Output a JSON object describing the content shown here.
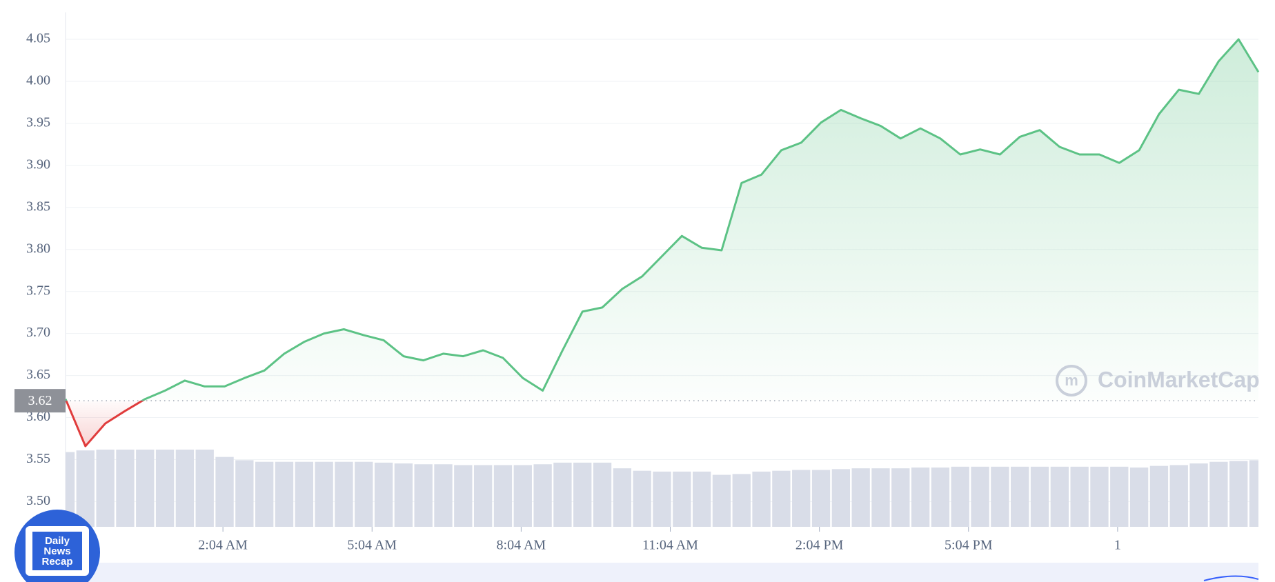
{
  "chart_data": {
    "type": "line",
    "x": [
      -1.1,
      -0.7,
      -0.3,
      0.1,
      0.5,
      0.9,
      1.3,
      1.7,
      2.1,
      2.5,
      2.9,
      3.3,
      3.7,
      4.1,
      4.5,
      4.9,
      5.3,
      5.7,
      6.1,
      6.5,
      6.9,
      7.3,
      7.7,
      8.1,
      8.5,
      8.9,
      9.3,
      9.7,
      10.1,
      10.5,
      10.9,
      11.3,
      11.7,
      12.1,
      12.5,
      12.9,
      13.3,
      13.7,
      14.1,
      14.5,
      14.9,
      15.3,
      15.7,
      16.1,
      16.5,
      16.9,
      17.3,
      17.7,
      18.1,
      18.5,
      18.9,
      19.3,
      19.7,
      20.1,
      20.5,
      20.9,
      21.3,
      21.7,
      22.1,
      22.5,
      22.9
    ],
    "values": [
      3.622,
      3.566,
      3.593,
      3.608,
      3.622,
      3.632,
      3.644,
      3.637,
      3.637,
      3.647,
      3.656,
      3.676,
      3.69,
      3.7,
      3.705,
      3.698,
      3.692,
      3.673,
      3.668,
      3.676,
      3.673,
      3.68,
      3.671,
      3.647,
      3.632,
      3.68,
      3.726,
      3.731,
      3.753,
      3.768,
      3.792,
      3.816,
      3.802,
      3.799,
      3.879,
      3.889,
      3.918,
      3.927,
      3.951,
      3.966,
      3.956,
      3.947,
      3.932,
      3.944,
      3.932,
      3.913,
      3.919,
      3.913,
      3.934,
      3.942,
      3.922,
      3.913,
      3.913,
      3.903,
      3.918,
      3.961,
      3.99,
      3.985,
      4.024,
      4.05,
      4.011
    ],
    "up_color": "#5cc285",
    "down_color": "#e03c3c",
    "baseline": 3.62,
    "volume": {
      "axis": "y2",
      "color": "#d9dde8",
      "values": [
        92,
        94,
        95,
        95,
        95,
        95,
        95,
        95,
        86,
        82,
        80,
        80,
        80,
        80,
        80,
        80,
        79,
        78,
        77,
        77,
        76,
        76,
        76,
        76,
        77,
        79,
        79,
        79,
        72,
        69,
        68,
        68,
        68,
        64,
        65,
        68,
        69,
        70,
        70,
        71,
        72,
        72,
        72,
        73,
        73,
        74,
        74,
        74,
        74,
        74,
        74,
        74,
        74,
        74,
        73,
        75,
        76,
        78,
        80,
        81,
        82
      ]
    },
    "xlim": [
      -1.1,
      22.9
    ],
    "xticks": [
      {
        "value": 2.0667,
        "label": "2:04 AM"
      },
      {
        "value": 5.0667,
        "label": "5:04 AM"
      },
      {
        "value": 8.0667,
        "label": "8:04 AM"
      },
      {
        "value": 11.0667,
        "label": "11:04 AM"
      },
      {
        "value": 14.0667,
        "label": "2:04 PM"
      },
      {
        "value": 17.0667,
        "label": "5:04 PM"
      },
      {
        "value": 20.0667,
        "label": "1"
      }
    ],
    "ylim": [
      3.47,
      4.082
    ],
    "yticks": [
      {
        "value": 3.5,
        "label": "3.50"
      },
      3.55,
      {
        "value": 3.6,
        "label": "3.60"
      },
      3.65,
      {
        "value": 3.7,
        "label": "3.70"
      },
      3.75,
      {
        "value": 3.8,
        "label": "3.80"
      },
      3.85,
      {
        "value": 3.9,
        "label": "3.90"
      },
      3.95,
      {
        "value": 4.0,
        "label": "4.00"
      },
      4.05
    ],
    "y2lim": [
      0,
      633
    ],
    "grid": true,
    "watermark": "CoinMarketCap"
  },
  "badge": {
    "lines": [
      "Daily",
      "News",
      "Recap"
    ]
  }
}
